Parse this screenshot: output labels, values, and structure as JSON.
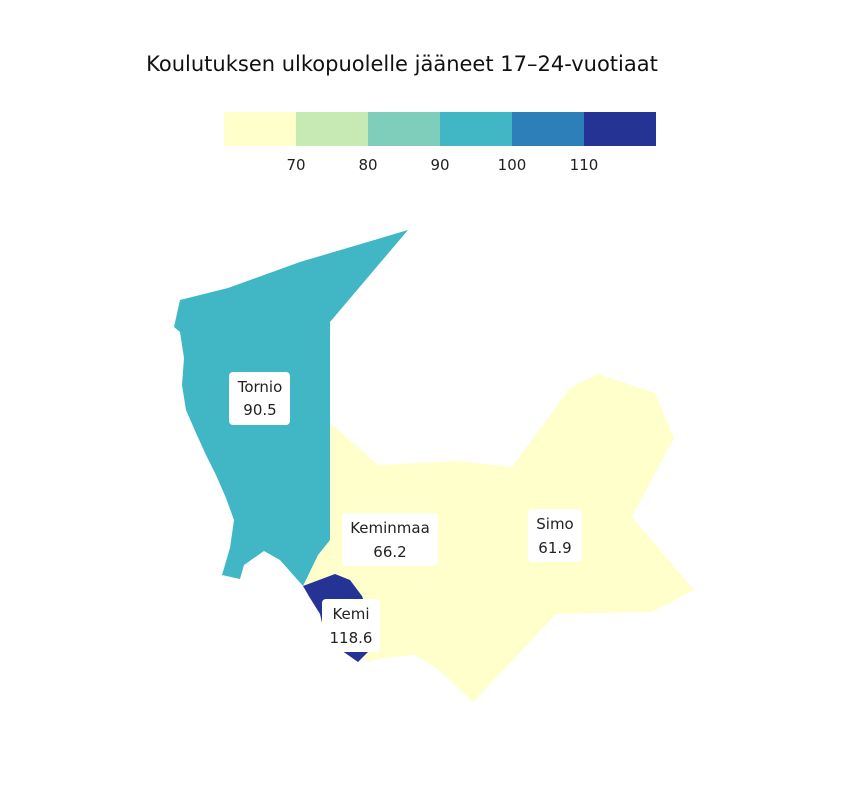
{
  "title": "Koulutuksen ulkopuolelle jääneet 17–24-vuotiaat",
  "legend": {
    "ticks": [
      "70",
      "80",
      "90",
      "100",
      "110"
    ],
    "colors": [
      "#ffffcc",
      "#c7e9b4",
      "#7fcdbb",
      "#41b6c4",
      "#2c7fb8",
      "#253494"
    ]
  },
  "regions": [
    {
      "name": "Tornio",
      "value": "90.5",
      "color": "#41b6c4"
    },
    {
      "name": "Keminmaa",
      "value": "66.2",
      "color": "#ffffcc"
    },
    {
      "name": "Simo",
      "value": "61.9",
      "color": "#ffffcc"
    },
    {
      "name": "Kemi",
      "value": "118.6",
      "color": "#253494"
    }
  ]
}
